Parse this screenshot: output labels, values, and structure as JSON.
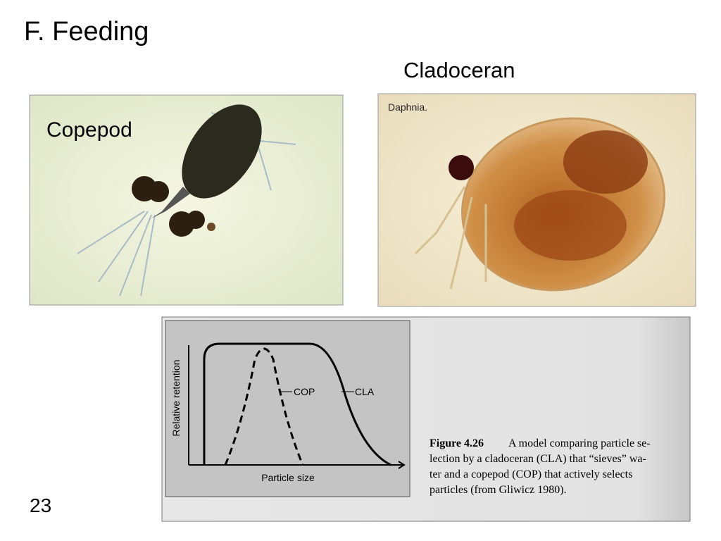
{
  "slide": {
    "title": "F.  Feeding",
    "left_photo": {
      "label": "Copepod"
    },
    "right_photo": {
      "heading": "Cladoceran",
      "caption": "Daphnia."
    },
    "figure": {
      "y_axis_label": "Relative retention",
      "x_axis_label": "Particle size",
      "curve_labels": [
        "COP",
        "CLA"
      ],
      "caption_label": "Figure 4.26",
      "caption_lines": [
        "A model comparing particle se-",
        "lection by a cladoceran (CLA) that “sieves” wa-",
        "ter and a copepod (COP) that actively selects",
        "particles (from Gliwicz 1980)."
      ]
    },
    "page_number": "23"
  }
}
